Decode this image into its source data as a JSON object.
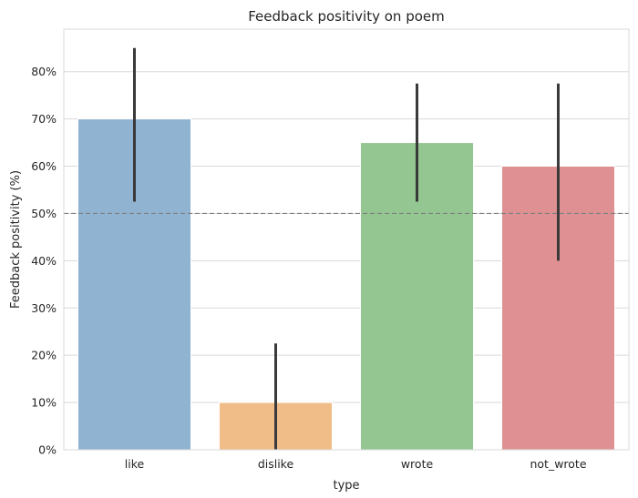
{
  "chart_data": {
    "type": "bar",
    "title": "Feedback positivity on poem",
    "xlabel": "type",
    "ylabel": "Feedback positivity (%)",
    "categories": [
      "like",
      "dislike",
      "wrote",
      "not_wrote"
    ],
    "values": [
      70,
      10,
      65,
      60
    ],
    "error_bars": [
      {
        "low": 52.5,
        "high": 85
      },
      {
        "low": 0,
        "high": 22.5
      },
      {
        "low": 52.5,
        "high": 77.5
      },
      {
        "low": 40,
        "high": 77.5
      }
    ],
    "colors": [
      "#8fb3d0",
      "#f0bc88",
      "#93c691",
      "#de9093"
    ],
    "reference_line": {
      "y": 50,
      "style": "dashed",
      "color": "#808080"
    },
    "ylim": [
      0,
      89
    ],
    "yticks": [
      0,
      10,
      20,
      30,
      40,
      50,
      60,
      70,
      80
    ],
    "ytick_labels": [
      "0%",
      "10%",
      "20%",
      "30%",
      "40%",
      "50%",
      "60%",
      "70%",
      "80%"
    ],
    "grid": true,
    "legend": "none"
  }
}
